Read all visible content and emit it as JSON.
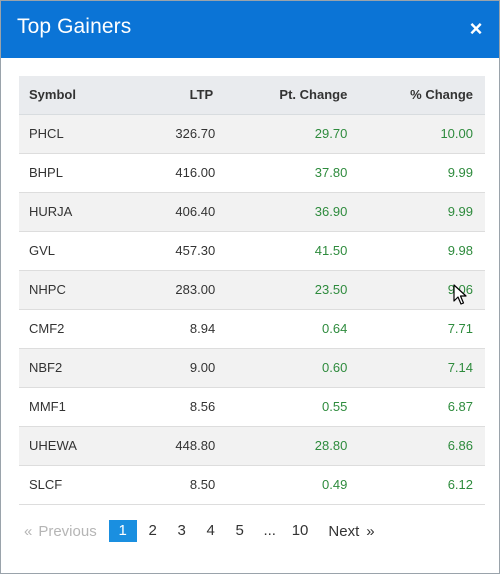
{
  "modal": {
    "title": "Top Gainers",
    "close_label": "×"
  },
  "table": {
    "headers": [
      "Symbol",
      "LTP",
      "Pt. Change",
      "% Change"
    ],
    "rows": [
      [
        "PHCL",
        "326.70",
        "29.70",
        "10.00"
      ],
      [
        "BHPL",
        "416.00",
        "37.80",
        "9.99"
      ],
      [
        "HURJA",
        "406.40",
        "36.90",
        "9.99"
      ],
      [
        "GVL",
        "457.30",
        "41.50",
        "9.98"
      ],
      [
        "NHPC",
        "283.00",
        "23.50",
        "9.06"
      ],
      [
        "CMF2",
        "8.94",
        "0.64",
        "7.71"
      ],
      [
        "NBF2",
        "9.00",
        "0.60",
        "7.14"
      ],
      [
        "MMF1",
        "8.56",
        "0.55",
        "6.87"
      ],
      [
        "UHEWA",
        "448.80",
        "28.80",
        "6.86"
      ],
      [
        "SLCF",
        "8.50",
        "0.49",
        "6.12"
      ]
    ]
  },
  "pagination": {
    "prev_arrow": "«",
    "prev_label": "Previous",
    "pages": [
      "1",
      "2",
      "3",
      "4",
      "5",
      "...",
      "10"
    ],
    "active_page": "1",
    "next_label": "Next",
    "next_arrow": "»"
  },
  "colors": {
    "header_bg": "#0b74d6",
    "positive": "#2e8b3d",
    "active_page_bg": "#1a8fe0"
  }
}
